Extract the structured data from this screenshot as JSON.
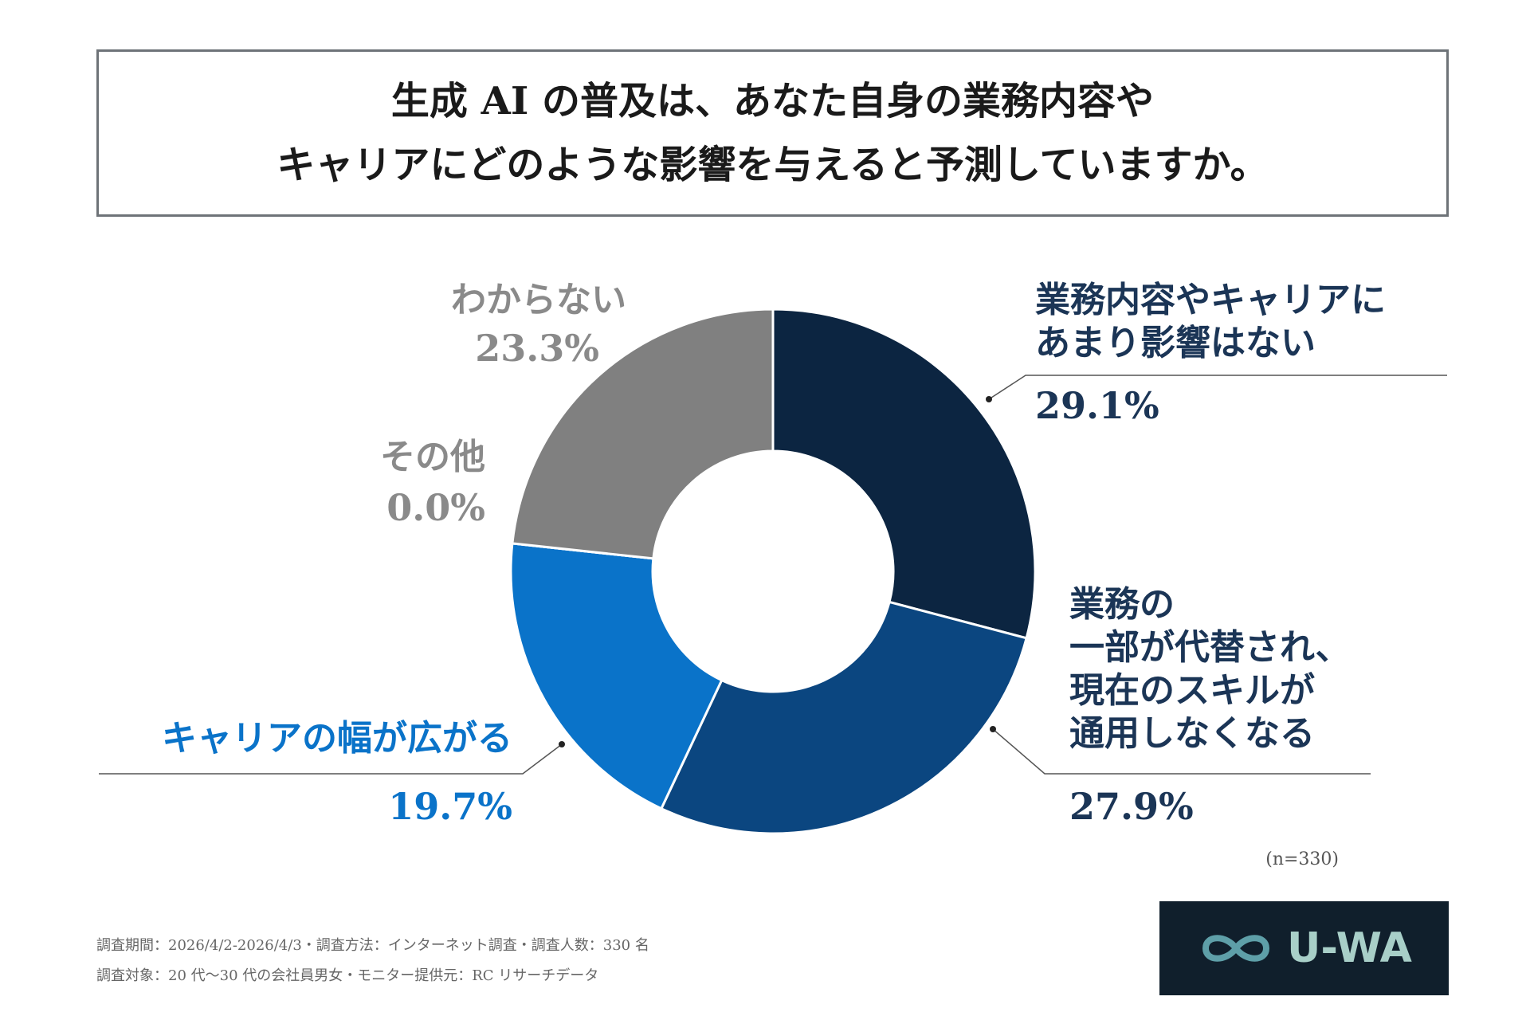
{
  "chart_data": {
    "type": "donut",
    "title": "生成 AI の普及は、あなた自身の業務内容や\nキャリアにどのような影響を与えると予測していますか。",
    "categories": [
      "業務内容やキャリアに\nあまり影響はない",
      "業務の\n一部が代替され、\n現在のスキルが\n通用しなくなる",
      "キャリアの幅が広がる",
      "その他",
      "わからない"
    ],
    "values": [
      29.1,
      27.9,
      19.7,
      0.0,
      23.3
    ],
    "value_labels": [
      "29.1%",
      "27.9%",
      "19.7%",
      "0.0%",
      "23.3%"
    ],
    "colors": [
      "#0c2541",
      "#0b4680",
      "#0a73c9",
      "#aaaaaa",
      "#808080"
    ],
    "label_colors": [
      "#1b3556",
      "#1b3556",
      "#0a73c9",
      "#8a8a8a",
      "#8a8a8a"
    ],
    "note": "(n=330)"
  },
  "footnotes": [
    "調査期間：2026/4/2-2026/4/3・調査方法：インターネット調査・調査人数：330 名",
    "調査対象：20 代〜30 代の会社員男女・モニター提供元：RC リサーチデータ"
  ],
  "logo": "U-WA"
}
